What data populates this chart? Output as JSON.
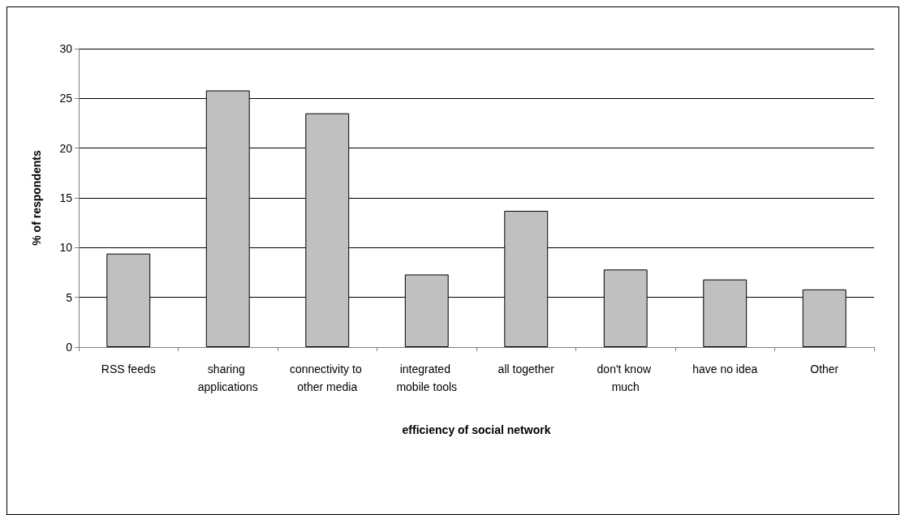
{
  "chart_data": {
    "type": "bar",
    "xlabel": "efficiency of social network",
    "ylabel": "% of respondents",
    "categories": [
      "RSS feeds",
      "sharing applications",
      "connectivity to other media",
      "integrated mobile tools",
      "all together",
      "don't know much",
      "have no idea",
      "Other"
    ],
    "values": [
      9.4,
      25.8,
      23.5,
      7.3,
      13.7,
      7.8,
      6.8,
      5.8
    ],
    "color": "#c0c0c0",
    "ylim": [
      0,
      30
    ],
    "yticks": [
      0,
      5,
      10,
      15,
      20,
      25,
      30
    ],
    "grid": "y"
  }
}
